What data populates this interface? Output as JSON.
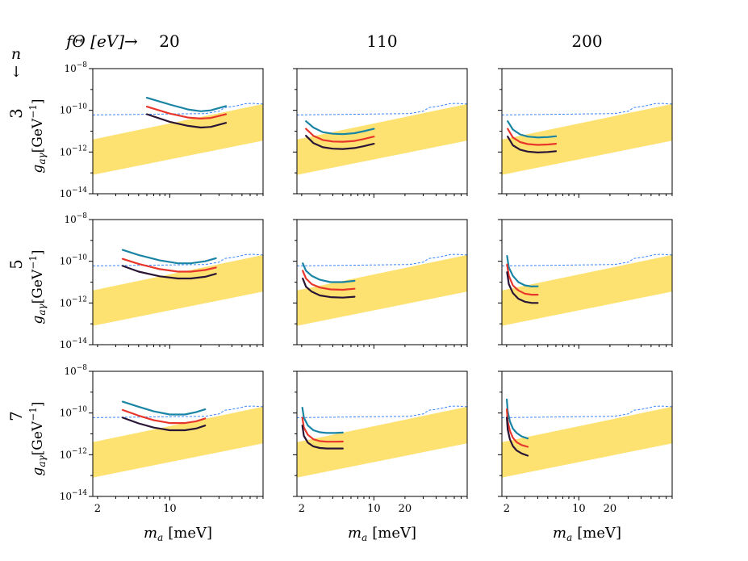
{
  "header": {
    "f_label": "fΘ [eV]→",
    "n_label": "n",
    "n_arrow": "↓"
  },
  "chart_data": {
    "type": "line",
    "grid": false,
    "columns": [
      {
        "f_theta_eV": "20"
      },
      {
        "f_theta_eV": "110"
      },
      {
        "f_theta_eV": "200"
      }
    ],
    "rows": [
      {
        "n": "3"
      },
      {
        "n": "5"
      },
      {
        "n": "7"
      }
    ],
    "xlabel": "m_a [meV]",
    "xlabel_main": "m",
    "xlabel_sub": "a",
    "xlabel_unit": "[meV]",
    "ylabel_main": "g",
    "ylabel_sub": "aγ",
    "ylabel_unit": "[GeV",
    "ylabel_exp": "−1",
    "ylabel_close": "]",
    "x_scale": "log",
    "y_scale": "log",
    "xlim": [
      1.8,
      80
    ],
    "ylim": [
      1e-14,
      1e-08
    ],
    "x_ticks": [
      {
        "value": 2,
        "label": "2"
      },
      {
        "value": 10,
        "label": "10"
      },
      {
        "value": 20,
        "label": "20"
      }
    ],
    "y_ticks": [
      {
        "value": 1e-08,
        "base": "10",
        "exp": "−8"
      },
      {
        "value": 1e-10,
        "base": "10",
        "exp": "−10"
      },
      {
        "value": 1e-12,
        "base": "10",
        "exp": "−12"
      },
      {
        "value": 1e-14,
        "base": "10",
        "exp": "−14"
      }
    ],
    "colors": {
      "band": "#fde272",
      "limit": "#3a86ff",
      "upper": "#1a84a5",
      "middle": "#e8362b",
      "lower": "#2a1535"
    },
    "band": {
      "x": [
        1.8,
        80
      ],
      "lower": [
        8e-14,
        3.5e-12
      ],
      "upper": [
        4e-12,
        2e-10
      ]
    },
    "limit_curve": {
      "x": [
        1.8,
        22,
        30,
        34,
        40,
        48,
        55,
        65,
        72,
        80
      ],
      "y": [
        6e-11,
        7e-11,
        9e-11,
        1.35e-10,
        1.5e-10,
        1.8e-10,
        2.1e-10,
        2.15e-10,
        2.05e-10,
        2e-10
      ]
    },
    "panels": [
      {
        "row": 0,
        "col": 0,
        "series": [
          {
            "name": "upper",
            "x": [
              6,
              10,
              15,
              20,
              25,
              35
            ],
            "y": [
              4e-10,
              1.9e-10,
              1.1e-10,
              9e-11,
              1e-10,
              1.6e-10
            ]
          },
          {
            "name": "middle",
            "x": [
              6,
              10,
              15,
              20,
              25,
              35
            ],
            "y": [
              1.5e-10,
              7e-11,
              4.5e-11,
              4e-11,
              4.3e-11,
              6.5e-11
            ]
          },
          {
            "name": "lower",
            "x": [
              6,
              10,
              15,
              20,
              25,
              35
            ],
            "y": [
              6.5e-11,
              2.8e-11,
              1.8e-11,
              1.5e-11,
              1.6e-11,
              2.5e-11
            ]
          }
        ]
      },
      {
        "row": 0,
        "col": 1,
        "series": [
          {
            "name": "upper",
            "x": [
              2.2,
              2.6,
              3.2,
              4,
              5,
              6.5,
              8,
              10
            ],
            "y": [
              3e-11,
              1.5e-11,
              9e-12,
              7.5e-12,
              7.2e-12,
              8e-12,
              1e-11,
              1.3e-11
            ]
          },
          {
            "name": "middle",
            "x": [
              2.2,
              2.6,
              3.2,
              4,
              5,
              6.5,
              8,
              10
            ],
            "y": [
              1.3e-11,
              6e-12,
              3.8e-12,
              3.2e-12,
              3.1e-12,
              3.4e-12,
              4.2e-12,
              5.5e-12
            ]
          },
          {
            "name": "lower",
            "x": [
              2.2,
              2.6,
              3.2,
              4,
              5,
              6.5,
              8,
              10
            ],
            "y": [
              6e-12,
              2.7e-12,
              1.7e-12,
              1.45e-12,
              1.4e-12,
              1.55e-12,
              1.9e-12,
              2.5e-12
            ]
          }
        ]
      },
      {
        "row": 0,
        "col": 2,
        "series": [
          {
            "name": "upper",
            "x": [
              2.05,
              2.3,
              2.7,
              3.2,
              4,
              5,
              6
            ],
            "y": [
              3e-11,
              1.2e-11,
              7e-12,
              5.5e-12,
              5e-12,
              5.2e-12,
              5.7e-12
            ]
          },
          {
            "name": "middle",
            "x": [
              2.05,
              2.3,
              2.7,
              3.2,
              4,
              5,
              6
            ],
            "y": [
              1.3e-11,
              5e-12,
              3e-12,
              2.4e-12,
              2.2e-12,
              2.3e-12,
              2.5e-12
            ]
          },
          {
            "name": "lower",
            "x": [
              2.05,
              2.3,
              2.7,
              3.2,
              4,
              5,
              6
            ],
            "y": [
              5.5e-12,
              2.1e-12,
              1.3e-12,
              1.05e-12,
              9.5e-13,
              1e-12,
              1.1e-12
            ]
          }
        ]
      },
      {
        "row": 1,
        "col": 0,
        "series": [
          {
            "name": "upper",
            "x": [
              3.5,
              5,
              8,
              12,
              16,
              22,
              28
            ],
            "y": [
              3.5e-10,
              2e-10,
              1.1e-10,
              8e-11,
              8e-11,
              1e-10,
              1.4e-10
            ]
          },
          {
            "name": "middle",
            "x": [
              3.5,
              5,
              8,
              12,
              16,
              22,
              28
            ],
            "y": [
              1.3e-10,
              7.5e-11,
              4.2e-11,
              3.2e-11,
              3.2e-11,
              3.8e-11,
              5e-11
            ]
          },
          {
            "name": "lower",
            "x": [
              3.5,
              5,
              8,
              12,
              16,
              22,
              28
            ],
            "y": [
              6e-11,
              3.2e-11,
              1.9e-11,
              1.5e-11,
              1.5e-11,
              1.8e-11,
              2.5e-11
            ]
          }
        ]
      },
      {
        "row": 1,
        "col": 1,
        "series": [
          {
            "name": "upper",
            "x": [
              2.05,
              2.2,
              2.5,
              3,
              3.8,
              5,
              6.5
            ],
            "y": [
              8e-11,
              3.5e-11,
              2e-11,
              1.3e-11,
              1e-11,
              1e-11,
              1.15e-11
            ]
          },
          {
            "name": "middle",
            "x": [
              2.05,
              2.2,
              2.5,
              3,
              3.8,
              5,
              6.5
            ],
            "y": [
              3.5e-11,
              1.5e-11,
              8e-12,
              5.5e-12,
              4.5e-12,
              4.3e-12,
              4.8e-12
            ]
          },
          {
            "name": "lower",
            "x": [
              2.05,
              2.2,
              2.5,
              3,
              3.8,
              5,
              6.5
            ],
            "y": [
              1.5e-11,
              6e-12,
              3.5e-12,
              2.3e-12,
              1.9e-12,
              1.8e-12,
              2e-12
            ]
          }
        ]
      },
      {
        "row": 1,
        "col": 2,
        "series": [
          {
            "name": "upper",
            "x": [
              2.02,
              2.1,
              2.3,
              2.6,
              3,
              3.5,
              4
            ],
            "y": [
              1.8e-10,
              5e-11,
              2e-11,
              1e-11,
              7e-12,
              6.2e-12,
              6.3e-12
            ]
          },
          {
            "name": "middle",
            "x": [
              2.02,
              2.1,
              2.3,
              2.6,
              3,
              3.5,
              4
            ],
            "y": [
              7e-11,
              2e-11,
              7e-12,
              4e-12,
              2.8e-12,
              2.5e-12,
              2.5e-12
            ]
          },
          {
            "name": "lower",
            "x": [
              2.02,
              2.1,
              2.3,
              2.6,
              3,
              3.5,
              4
            ],
            "y": [
              3e-11,
              8e-12,
              3e-12,
              1.6e-12,
              1.15e-12,
              1e-12,
              1e-12
            ]
          }
        ]
      },
      {
        "row": 2,
        "col": 0,
        "series": [
          {
            "name": "upper",
            "x": [
              3.5,
              5,
              7,
              10,
              14,
              18,
              22
            ],
            "y": [
              3.5e-10,
              2e-10,
              1.2e-10,
              8.5e-11,
              8.5e-11,
              1.1e-10,
              1.5e-10
            ]
          },
          {
            "name": "middle",
            "x": [
              3.5,
              5,
              7,
              10,
              14,
              18,
              22
            ],
            "y": [
              1.4e-10,
              7.5e-11,
              4.5e-11,
              3.3e-11,
              3.3e-11,
              4e-11,
              5.5e-11
            ]
          },
          {
            "name": "lower",
            "x": [
              3.5,
              5,
              7,
              10,
              14,
              18,
              22
            ],
            "y": [
              6e-11,
              3.2e-11,
              2e-11,
              1.5e-11,
              1.5e-11,
              1.8e-11,
              2.5e-11
            ]
          }
        ]
      },
      {
        "row": 2,
        "col": 1,
        "series": [
          {
            "name": "upper",
            "x": [
              2.03,
              2.1,
              2.3,
              2.6,
              3,
              3.5,
              4.2,
              5
            ],
            "y": [
              1.8e-10,
              6e-11,
              2.5e-11,
              1.5e-11,
              1.2e-11,
              1.1e-11,
              1.1e-11,
              1.15e-11
            ]
          },
          {
            "name": "middle",
            "x": [
              2.03,
              2.1,
              2.3,
              2.6,
              3,
              3.5,
              4.2,
              5
            ],
            "y": [
              6e-11,
              2e-11,
              9e-12,
              5.5e-12,
              4.5e-12,
              4.2e-12,
              4.2e-12,
              4.3e-12
            ]
          },
          {
            "name": "lower",
            "x": [
              2.03,
              2.1,
              2.3,
              2.6,
              3,
              3.5,
              4.2,
              5
            ],
            "y": [
              2.5e-11,
              8e-12,
              3.8e-12,
              2.5e-12,
              2.1e-12,
              2e-12,
              2e-12,
              2e-12
            ]
          }
        ]
      },
      {
        "row": 2,
        "col": 2,
        "series": [
          {
            "name": "upper",
            "x": [
              2.01,
              2.05,
              2.15,
              2.3,
              2.5,
              2.8,
              3.2
            ],
            "y": [
              4.5e-10,
              1.2e-10,
              4e-11,
              1.8e-11,
              1.1e-11,
              7.5e-12,
              6e-12
            ]
          },
          {
            "name": "middle",
            "x": [
              2.01,
              2.05,
              2.15,
              2.3,
              2.5,
              2.8,
              3.2
            ],
            "y": [
              1.5e-10,
              4e-11,
              1.4e-11,
              6.5e-12,
              4e-12,
              2.9e-12,
              2.4e-12
            ]
          },
          {
            "name": "lower",
            "x": [
              2.01,
              2.05,
              2.15,
              2.3,
              2.5,
              2.8,
              3.2
            ],
            "y": [
              6e-11,
              1.6e-11,
              5.5e-12,
              2.6e-12,
              1.6e-12,
              1.15e-12,
              9e-13
            ]
          }
        ]
      }
    ]
  }
}
